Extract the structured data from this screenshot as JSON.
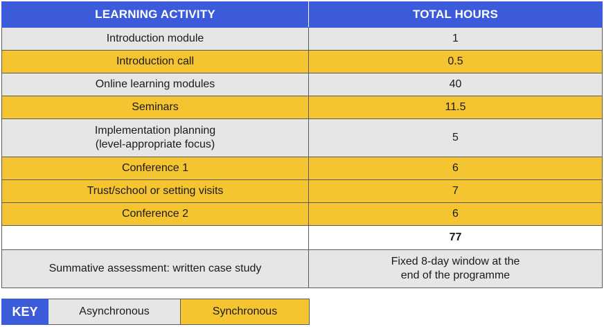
{
  "table": {
    "headers": [
      "LEARNING ACTIVITY",
      "TOTAL HOURS"
    ],
    "rows": [
      {
        "activity": "Introduction module",
        "hours": "1",
        "type": "async"
      },
      {
        "activity": "Introduction call",
        "hours": "0.5",
        "type": "sync"
      },
      {
        "activity": "Online learning modules",
        "hours": "40",
        "type": "async"
      },
      {
        "activity": "Seminars",
        "hours": "11.5",
        "type": "sync"
      },
      {
        "activity": "Implementation planning\n(level-appropriate focus)",
        "activity_line1": "Implementation planning",
        "activity_line2": "(level-appropriate focus)",
        "hours": "5",
        "type": "async"
      },
      {
        "activity": "Conference 1",
        "hours": "6",
        "type": "sync"
      },
      {
        "activity": "Trust/school or setting visits",
        "hours": "7",
        "type": "sync"
      },
      {
        "activity": "Conference 2",
        "hours": "6",
        "type": "sync"
      }
    ],
    "total": {
      "label": "",
      "hours": "77"
    },
    "assessment": {
      "activity": "Summative assessment: written case study",
      "hours_line1": "Fixed 8-day window at the",
      "hours_line2": "end of the programme"
    }
  },
  "key": {
    "label": "KEY",
    "async_label": "Asynchronous",
    "sync_label": "Synchronous"
  },
  "colors": {
    "header_blue": "#3b5bdb",
    "async_grey": "#e6e6e6",
    "sync_yellow": "#f5c431"
  }
}
